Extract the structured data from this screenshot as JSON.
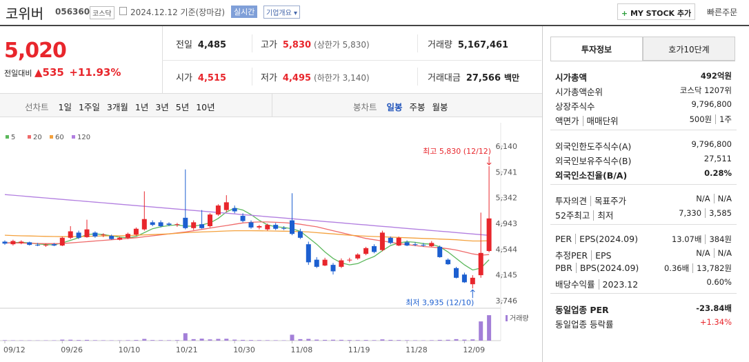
{
  "header": {
    "name": "코위버",
    "code": "056360",
    "market": "코스닥",
    "date": "2024.12.12",
    "basis": "기준(장마감)",
    "realtime": "실시간",
    "overview": "기업개요",
    "my_stock": "MY STOCK 추가",
    "quick_order": "빠른주문"
  },
  "price": {
    "current": "5,020",
    "change_label": "전일대비",
    "change": "535",
    "change_pct": "+11.93%",
    "grid": [
      {
        "label": "전일",
        "value": "4,485"
      },
      {
        "label": "고가",
        "value": "5,830",
        "note": "(상한가 5,830)"
      },
      {
        "label": "거래량",
        "value": "5,167,461"
      },
      {
        "label": "시가",
        "value": "4,515"
      },
      {
        "label": "저가",
        "value": "4,495",
        "note": "(하한가 3,140)"
      },
      {
        "label": "거래대금",
        "value": "27,566",
        "unit": "백만"
      }
    ]
  },
  "tabs": {
    "line": [
      "선차트",
      "1일",
      "1주일",
      "3개월",
      "1년",
      "3년",
      "5년",
      "10년"
    ],
    "candle": [
      "봉차트",
      "일봉",
      "주봉",
      "월봉"
    ]
  },
  "chart_data": {
    "type": "candlestick",
    "categories": [
      "09/12",
      null,
      null,
      null,
      null,
      null,
      null,
      "09/26",
      null,
      null,
      null,
      null,
      null,
      null,
      "10/10",
      null,
      null,
      null,
      null,
      null,
      null,
      "10/21",
      null,
      null,
      null,
      null,
      null,
      null,
      "10/30",
      null,
      null,
      null,
      null,
      null,
      null,
      "11/08",
      null,
      null,
      null,
      null,
      null,
      null,
      "11/19",
      null,
      null,
      null,
      null,
      null,
      null,
      "11/28",
      null,
      null,
      null,
      null,
      null,
      null,
      "12/09",
      null,
      null,
      null
    ],
    "candles": [
      [
        4660,
        4680,
        4610,
        4630
      ],
      [
        4620,
        4690,
        4600,
        4670
      ],
      [
        4640,
        4680,
        4620,
        4660
      ],
      [
        4650,
        4660,
        4600,
        4610
      ],
      [
        4610,
        4640,
        4590,
        4600
      ],
      [
        4600,
        4630,
        4580,
        4610
      ],
      [
        4620,
        4640,
        4590,
        4600
      ],
      [
        4600,
        4740,
        4590,
        4720
      ],
      [
        4720,
        4900,
        4700,
        4820
      ],
      [
        4800,
        4830,
        4700,
        4720
      ],
      [
        4730,
        5000,
        4720,
        4850
      ],
      [
        4800,
        4820,
        4720,
        4740
      ],
      [
        4760,
        4790,
        4730,
        4770
      ],
      [
        4750,
        4770,
        4690,
        4700
      ],
      [
        4690,
        4740,
        4680,
        4720
      ],
      [
        4720,
        4800,
        4700,
        4780
      ],
      [
        4770,
        4880,
        4750,
        4860
      ],
      [
        4850,
        5440,
        4830,
        5010
      ],
      [
        4960,
        4990,
        4900,
        4920
      ],
      [
        4960,
        4990,
        4880,
        4900
      ],
      [
        4940,
        4960,
        4900,
        4920
      ],
      [
        4920,
        4950,
        4890,
        4930
      ],
      [
        5030,
        5780,
        4850,
        4870
      ],
      [
        4870,
        4990,
        4840,
        4960
      ],
      [
        4930,
        5150,
        4860,
        4870
      ],
      [
        4900,
        5100,
        4880,
        5080
      ],
      [
        5080,
        5240,
        5060,
        5220
      ],
      [
        5150,
        5380,
        5120,
        5270
      ],
      [
        5180,
        5220,
        5100,
        5130
      ],
      [
        5060,
        5100,
        4960,
        4980
      ],
      [
        4960,
        4990,
        4860,
        4880
      ],
      [
        4880,
        4920,
        4850,
        4900
      ],
      [
        4850,
        4940,
        4830,
        4920
      ],
      [
        4920,
        4950,
        4840,
        4860
      ],
      [
        4870,
        4900,
        4840,
        4860
      ],
      [
        4990,
        5410,
        4760,
        4780
      ],
      [
        4820,
        4860,
        4700,
        4720
      ],
      [
        4620,
        4660,
        4300,
        4340
      ],
      [
        4380,
        4420,
        4250,
        4270
      ],
      [
        4290,
        4410,
        4280,
        4380
      ],
      [
        4300,
        4330,
        4150,
        4200
      ],
      [
        4270,
        4400,
        4250,
        4370
      ],
      [
        4370,
        4410,
        4340,
        4380
      ],
      [
        4400,
        4480,
        4380,
        4460
      ],
      [
        4470,
        4580,
        4450,
        4560
      ],
      [
        4590,
        4620,
        4480,
        4500
      ],
      [
        4530,
        4830,
        4510,
        4800
      ],
      [
        4720,
        4740,
        4620,
        4640
      ],
      [
        4600,
        4740,
        4590,
        4720
      ],
      [
        4650,
        4680,
        4590,
        4600
      ],
      [
        4620,
        4650,
        4590,
        4610
      ],
      [
        4610,
        4640,
        4580,
        4600
      ],
      [
        4590,
        4670,
        4580,
        4640
      ],
      [
        4580,
        4600,
        4410,
        4420
      ],
      [
        4380,
        4400,
        4300,
        4310
      ],
      [
        4250,
        4270,
        4090,
        4100
      ],
      [
        4150,
        4180,
        4020,
        4030
      ],
      [
        4000,
        4140,
        3935,
        4100
      ],
      [
        4140,
        5110,
        4100,
        4485
      ],
      [
        4515,
        5830,
        4495,
        5020
      ]
    ],
    "up_color": "#e8262c",
    "down_color": "#1c5fd0",
    "series": [
      {
        "name": "5",
        "color": "#5cb85c",
        "values": [
          4640,
          4645,
          4650,
          4640,
          4625,
          4615,
          4610,
          4640,
          4680,
          4720,
          4770,
          4780,
          4770,
          4750,
          4730,
          4720,
          4740,
          4800,
          4860,
          4890,
          4910,
          4920,
          4900,
          4900,
          4920,
          4950,
          5020,
          5120,
          5180,
          5150,
          5080,
          4990,
          4920,
          4890,
          4880,
          4860,
          4820,
          4720,
          4620,
          4500,
          4400,
          4330,
          4300,
          4320,
          4380,
          4430,
          4520,
          4600,
          4640,
          4660,
          4650,
          4630,
          4620,
          4580,
          4500,
          4400,
          4300,
          4220,
          4250,
          4380
        ]
      },
      {
        "name": "20",
        "color": "#ef6a6a",
        "values": [
          4640,
          4640,
          4638,
          4635,
          4632,
          4630,
          4630,
          4632,
          4640,
          4650,
          4660,
          4670,
          4680,
          4690,
          4700,
          4710,
          4720,
          4735,
          4750,
          4765,
          4780,
          4795,
          4810,
          4830,
          4850,
          4870,
          4890,
          4910,
          4930,
          4950,
          4960,
          4965,
          4965,
          4960,
          4955,
          4945,
          4930,
          4910,
          4890,
          4860,
          4830,
          4800,
          4770,
          4740,
          4710,
          4690,
          4670,
          4650,
          4630,
          4615,
          4600,
          4585,
          4575,
          4565,
          4550,
          4530,
          4500,
          4470,
          4450,
          4460
        ]
      },
      {
        "name": "60",
        "color": "#f4a13c",
        "values": [
          4760,
          4755,
          4750,
          4748,
          4745,
          4742,
          4740,
          4738,
          4738,
          4740,
          4742,
          4745,
          4748,
          4750,
          4752,
          4755,
          4760,
          4765,
          4770,
          4775,
          4780,
          4790,
          4800,
          4805,
          4810,
          4815,
          4820,
          4825,
          4830,
          4830,
          4830,
          4828,
          4826,
          4824,
          4822,
          4820,
          4815,
          4810,
          4800,
          4790,
          4780,
          4770,
          4760,
          4752,
          4745,
          4740,
          4735,
          4730,
          4725,
          4720,
          4715,
          4710,
          4705,
          4700,
          4695,
          4690,
          4680,
          4670,
          4670,
          4675
        ]
      },
      {
        "name": "120",
        "color": "#b27fe0",
        "values": [
          5390,
          5380,
          5369,
          5358,
          5347,
          5337,
          5326,
          5315,
          5304,
          5294,
          5283,
          5272,
          5262,
          5251,
          5240,
          5229,
          5219,
          5208,
          5197,
          5187,
          5176,
          5165,
          5154,
          5144,
          5133,
          5122,
          5112,
          5101,
          5090,
          5079,
          5069,
          5058,
          5047,
          5037,
          5026,
          5015,
          5004,
          4994,
          4983,
          4972,
          4962,
          4951,
          4940,
          4929,
          4919,
          4908,
          4897,
          4887,
          4876,
          4865,
          4854,
          4844,
          4833,
          4822,
          4812,
          4801,
          4790,
          4779,
          4769,
          4758
        ]
      }
    ],
    "ylim": [
      3628,
      6418
    ],
    "yticks": [
      {
        "value": 6140,
        "label": "6,140"
      },
      {
        "value": 5741,
        "label": "5,741"
      },
      {
        "value": 5342,
        "label": "5,342"
      },
      {
        "value": 4943,
        "label": "4,943"
      },
      {
        "value": 4544,
        "label": "4,544"
      },
      {
        "value": 4145,
        "label": "4,145"
      },
      {
        "value": 3746,
        "label": "3,746"
      }
    ],
    "high_label": "최고 5,830 (12/12)",
    "low_label": "최저 3,935 (12/10)",
    "volume": {
      "name": "거래량",
      "color": "#a37fd8",
      "ylim": [
        0,
        5600000
      ],
      "values": [
        90000,
        70000,
        60000,
        60000,
        50000,
        60000,
        70000,
        200000,
        180000,
        120000,
        150000,
        90000,
        80000,
        70000,
        60000,
        90000,
        130000,
        350000,
        120000,
        100000,
        90000,
        110000,
        1500000,
        300000,
        400000,
        250000,
        350000,
        380000,
        200000,
        150000,
        120000,
        100000,
        90000,
        80000,
        70000,
        1200000,
        300000,
        350000,
        200000,
        150000,
        180000,
        160000,
        120000,
        110000,
        130000,
        100000,
        250000,
        150000,
        120000,
        90000,
        80000,
        70000,
        90000,
        150000,
        170000,
        300000,
        200000,
        250000,
        3900000,
        5167461
      ]
    }
  },
  "invest_info": {
    "tabs": [
      "투자정보",
      "호가10단계"
    ],
    "sections": [
      [
        {
          "label": [
            "시가총액"
          ],
          "value": [
            "492억원"
          ]
        },
        {
          "label": [
            "시가총액순위"
          ],
          "value": [
            "코스닥 1207위"
          ]
        },
        {
          "label": [
            "상장주식수"
          ],
          "value": [
            "9,796,800"
          ]
        },
        {
          "label": [
            "액면가",
            "매매단위"
          ],
          "value": [
            "500원",
            "1주"
          ]
        }
      ],
      [
        {
          "label": [
            "외국인한도주식수(A)"
          ],
          "value": [
            "9,796,800"
          ]
        },
        {
          "label": [
            "외국인보유주식수(B)"
          ],
          "value": [
            "27,511"
          ]
        },
        {
          "label": [
            "외국인소진율(B/A)"
          ],
          "value": [
            "0.28%"
          ]
        }
      ],
      [
        {
          "label": [
            "투자의견",
            "목표주가"
          ],
          "value": [
            "N/A",
            "N/A"
          ]
        },
        {
          "label": [
            "52주최고",
            "최저"
          ],
          "value": [
            "7,330",
            "3,585"
          ]
        }
      ],
      [
        {
          "label": [
            "PER",
            "EPS(2024.09)"
          ],
          "value": [
            "13.07배",
            "384원"
          ]
        },
        {
          "label": [
            "추정PER",
            "EPS"
          ],
          "value": [
            "N/A",
            "N/A"
          ]
        },
        {
          "label": [
            "PBR",
            "BPS(2024.09)"
          ],
          "value": [
            "0.36배",
            "13,782원"
          ]
        },
        {
          "label": [
            "배당수익률",
            "2023.12"
          ],
          "value": [
            "0.60%"
          ]
        }
      ],
      [
        {
          "label": [
            "동일업종 PER"
          ],
          "value": [
            "-23.84배"
          ]
        },
        {
          "label": [
            "동일업종 등락률"
          ],
          "value": [
            "+1.34%"
          ]
        }
      ]
    ]
  }
}
